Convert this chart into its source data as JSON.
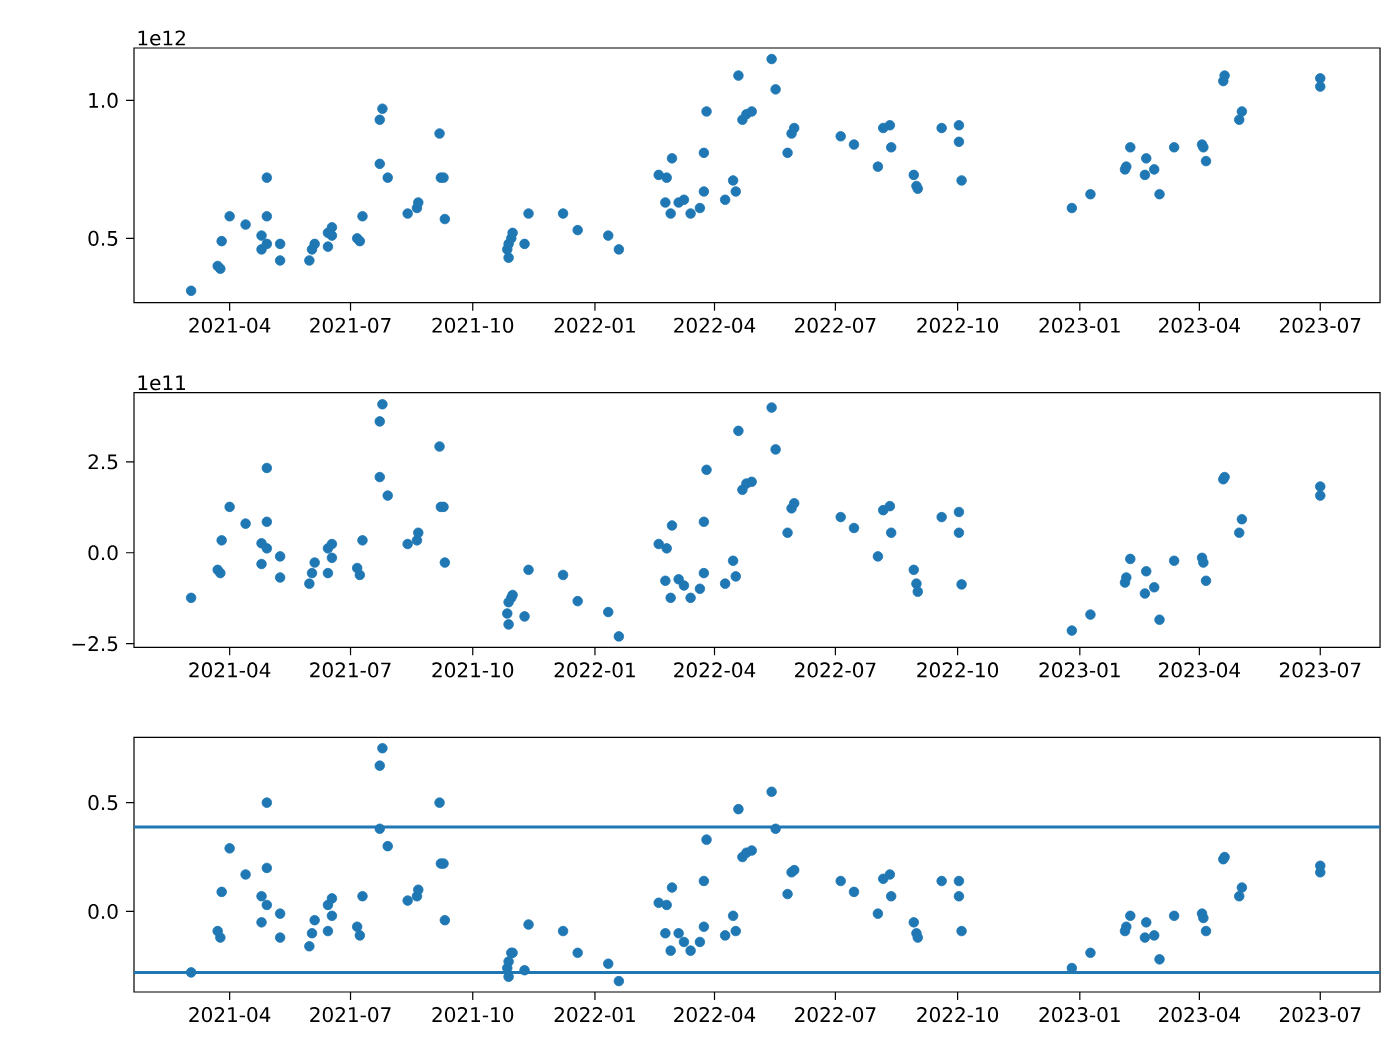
{
  "chart_data": [
    {
      "type": "scatter",
      "marker": "circle",
      "annotations": [
        "1e12"
      ],
      "x": [
        "2021-03-03",
        "2021-03-23",
        "2021-03-25",
        "2021-03-26",
        "2021-04-01",
        "2021-04-13",
        "2021-04-25",
        "2021-04-25",
        "2021-04-29",
        "2021-04-29",
        "2021-04-29",
        "2021-05-09",
        "2021-05-09",
        "2021-05-31",
        "2021-06-02",
        "2021-06-04",
        "2021-06-14",
        "2021-06-14",
        "2021-06-17",
        "2021-06-17",
        "2021-07-06",
        "2021-07-08",
        "2021-07-10",
        "2021-07-23",
        "2021-07-23",
        "2021-07-25",
        "2021-07-29",
        "2021-08-13",
        "2021-08-20",
        "2021-08-21",
        "2021-09-06",
        "2021-09-07",
        "2021-09-09",
        "2021-09-10",
        "2021-10-27",
        "2021-10-28",
        "2021-10-30",
        "2021-10-31",
        "2021-10-28",
        "2021-11-09",
        "2021-11-12",
        "2021-12-08",
        "2021-12-19",
        "2022-01-11",
        "2022-01-19",
        "2022-02-18",
        "2022-02-28",
        "2022-02-24",
        "2022-02-23",
        "2022-02-27",
        "2022-03-05",
        "2022-03-09",
        "2022-03-14",
        "2022-03-21",
        "2022-03-24",
        "2022-03-24",
        "2022-03-26",
        "2022-04-09",
        "2022-04-15",
        "2022-04-17",
        "2022-04-19",
        "2022-04-22",
        "2022-04-25",
        "2022-04-29",
        "2022-05-14",
        "2022-05-17",
        "2022-05-26",
        "2022-05-29",
        "2022-05-31",
        "2022-07-05",
        "2022-07-15",
        "2022-08-02",
        "2022-08-06",
        "2022-08-11",
        "2022-08-12",
        "2022-08-29",
        "2022-08-31",
        "2022-09-01",
        "2022-09-19",
        "2022-10-02",
        "2022-10-02",
        "2022-10-04",
        "2022-12-26",
        "2023-01-09",
        "2023-02-04",
        "2023-02-05",
        "2023-02-08",
        "2023-02-20",
        "2023-02-19",
        "2023-02-26",
        "2023-03-02",
        "2023-03-13",
        "2023-04-03",
        "2023-04-04",
        "2023-04-06",
        "2023-04-19",
        "2023-04-20",
        "2023-05-01",
        "2023-05-03",
        "2023-07-01",
        "2023-07-01"
      ],
      "series": [
        {
          "color": "#1f77b4",
          "values": [
            0.31,
            0.4,
            0.39,
            0.49,
            0.58,
            0.55,
            0.51,
            0.46,
            0.72,
            0.58,
            0.48,
            0.48,
            0.42,
            0.42,
            0.46,
            0.48,
            0.47,
            0.52,
            0.54,
            0.51,
            0.5,
            0.49,
            0.58,
            0.77,
            0.93,
            0.97,
            0.72,
            0.59,
            0.61,
            0.63,
            0.88,
            0.72,
            0.72,
            0.57,
            0.46,
            0.43,
            0.5,
            0.52,
            0.48,
            0.48,
            0.59,
            0.59,
            0.53,
            0.51,
            0.46,
            0.73,
            0.79,
            0.72,
            0.63,
            0.59,
            0.63,
            0.64,
            0.59,
            0.61,
            0.67,
            0.81,
            0.96,
            0.64,
            0.71,
            0.67,
            1.09,
            0.93,
            0.95,
            0.96,
            1.15,
            1.04,
            0.81,
            0.88,
            0.9,
            0.87,
            0.84,
            0.76,
            0.9,
            0.91,
            0.83,
            0.73,
            0.69,
            0.68,
            0.9,
            0.91,
            0.85,
            0.71,
            0.61,
            0.66,
            0.75,
            0.76,
            0.83,
            0.79,
            0.73,
            0.75,
            0.66,
            0.83,
            0.84,
            0.83,
            0.78,
            1.07,
            1.09,
            0.93,
            0.96,
            1.08,
            1.05
          ]
        }
      ],
      "xlim": [
        "2021-01-19",
        "2023-08-15"
      ],
      "xticks": [
        {
          "value": "2021-04-01",
          "label": "2021-04"
        },
        {
          "value": "2021-07-01",
          "label": "2021-07"
        },
        {
          "value": "2021-10-01",
          "label": "2021-10"
        },
        {
          "value": "2022-01-01",
          "label": "2022-01"
        },
        {
          "value": "2022-04-01",
          "label": "2022-04"
        },
        {
          "value": "2022-07-01",
          "label": "2022-07"
        },
        {
          "value": "2022-10-01",
          "label": "2022-10"
        },
        {
          "value": "2023-01-01",
          "label": "2023-01"
        },
        {
          "value": "2023-04-01",
          "label": "2023-04"
        },
        {
          "value": "2023-07-01",
          "label": "2023-07"
        }
      ],
      "ylim": [
        0.267,
        1.19
      ],
      "yticks": [
        {
          "value": 0.5,
          "label": "0.5"
        },
        {
          "value": 1.0,
          "label": "1.0"
        }
      ]
    },
    {
      "type": "scatter",
      "marker": "circle",
      "annotations": [
        "1e11"
      ],
      "x": [
        "2021-03-03",
        "2021-03-23",
        "2021-03-25",
        "2021-03-26",
        "2021-04-01",
        "2021-04-13",
        "2021-04-25",
        "2021-04-25",
        "2021-04-29",
        "2021-04-29",
        "2021-04-29",
        "2021-05-09",
        "2021-05-09",
        "2021-05-31",
        "2021-06-02",
        "2021-06-04",
        "2021-06-14",
        "2021-06-14",
        "2021-06-17",
        "2021-06-17",
        "2021-07-06",
        "2021-07-08",
        "2021-07-10",
        "2021-07-23",
        "2021-07-23",
        "2021-07-25",
        "2021-07-29",
        "2021-08-13",
        "2021-08-20",
        "2021-08-21",
        "2021-09-06",
        "2021-09-07",
        "2021-09-09",
        "2021-09-10",
        "2021-10-27",
        "2021-10-28",
        "2021-10-30",
        "2021-10-31",
        "2021-10-28",
        "2021-11-09",
        "2021-11-12",
        "2021-12-08",
        "2021-12-19",
        "2022-01-11",
        "2022-01-19",
        "2022-02-18",
        "2022-02-28",
        "2022-02-24",
        "2022-02-23",
        "2022-02-27",
        "2022-03-05",
        "2022-03-09",
        "2022-03-14",
        "2022-03-21",
        "2022-03-24",
        "2022-03-24",
        "2022-03-26",
        "2022-04-09",
        "2022-04-15",
        "2022-04-17",
        "2022-04-19",
        "2022-04-22",
        "2022-04-25",
        "2022-04-29",
        "2022-05-14",
        "2022-05-17",
        "2022-05-26",
        "2022-05-29",
        "2022-05-31",
        "2022-07-05",
        "2022-07-15",
        "2022-08-02",
        "2022-08-06",
        "2022-08-11",
        "2022-08-12",
        "2022-08-29",
        "2022-08-31",
        "2022-09-01",
        "2022-09-19",
        "2022-10-02",
        "2022-10-02",
        "2022-10-04",
        "2022-12-26",
        "2023-01-09",
        "2023-02-04",
        "2023-02-05",
        "2023-02-08",
        "2023-02-20",
        "2023-02-19",
        "2023-02-26",
        "2023-03-02",
        "2023-03-13",
        "2023-04-03",
        "2023-04-04",
        "2023-04-06",
        "2023-04-19",
        "2023-04-20",
        "2023-05-01",
        "2023-05-03",
        "2023-07-01",
        "2023-07-01"
      ],
      "series": [
        {
          "color": "#1f77b4",
          "values": [
            -1.24,
            -0.47,
            -0.56,
            0.34,
            1.26,
            0.8,
            0.26,
            -0.31,
            2.33,
            0.85,
            0.12,
            -0.1,
            -0.68,
            -0.85,
            -0.56,
            -0.27,
            -0.56,
            0.12,
            0.24,
            -0.14,
            -0.42,
            -0.61,
            0.34,
            2.08,
            3.61,
            4.08,
            1.57,
            0.24,
            0.34,
            0.55,
            2.92,
            1.26,
            1.26,
            -0.27,
            -1.67,
            -1.97,
            -1.24,
            -1.16,
            -1.36,
            -1.75,
            -0.47,
            -0.61,
            -1.33,
            -1.63,
            -2.3,
            0.24,
            0.75,
            0.12,
            -0.77,
            -1.24,
            -0.73,
            -0.9,
            -1.24,
            -0.99,
            -0.56,
            0.85,
            2.28,
            -0.85,
            -0.22,
            -0.65,
            3.35,
            1.73,
            1.9,
            1.95,
            3.99,
            2.84,
            0.55,
            1.22,
            1.36,
            0.98,
            0.68,
            -0.1,
            1.17,
            1.28,
            0.55,
            -0.47,
            -0.85,
            -1.07,
            0.98,
            1.12,
            0.55,
            -0.87,
            -2.14,
            -1.7,
            -0.82,
            -0.68,
            -0.17,
            -0.51,
            -1.12,
            -0.95,
            -1.84,
            -0.22,
            -0.14,
            -0.27,
            -0.77,
            2.02,
            2.08,
            0.55,
            0.92,
            1.82,
            1.57
          ]
        }
      ],
      "xlim": [
        "2021-01-19",
        "2023-08-15"
      ],
      "xticks": [
        {
          "value": "2021-04-01",
          "label": "2021-04"
        },
        {
          "value": "2021-07-01",
          "label": "2021-07"
        },
        {
          "value": "2021-10-01",
          "label": "2021-10"
        },
        {
          "value": "2022-01-01",
          "label": "2022-01"
        },
        {
          "value": "2022-04-01",
          "label": "2022-04"
        },
        {
          "value": "2022-07-01",
          "label": "2022-07"
        },
        {
          "value": "2022-10-01",
          "label": "2022-10"
        },
        {
          "value": "2023-01-01",
          "label": "2023-01"
        },
        {
          "value": "2023-04-01",
          "label": "2023-04"
        },
        {
          "value": "2023-07-01",
          "label": "2023-07"
        }
      ],
      "ylim": [
        -2.6,
        4.4
      ],
      "yticks": [
        {
          "value": -2.5,
          "label": "−2.5"
        },
        {
          "value": 0,
          "label": "0.0"
        },
        {
          "value": 2.5,
          "label": "2.5"
        }
      ]
    },
    {
      "type": "scatter",
      "marker": "circle",
      "x": [
        "2021-03-03",
        "2021-03-23",
        "2021-03-25",
        "2021-03-26",
        "2021-04-01",
        "2021-04-13",
        "2021-04-25",
        "2021-04-25",
        "2021-04-29",
        "2021-04-29",
        "2021-04-29",
        "2021-05-09",
        "2021-05-09",
        "2021-05-31",
        "2021-06-02",
        "2021-06-04",
        "2021-06-14",
        "2021-06-14",
        "2021-06-17",
        "2021-06-17",
        "2021-07-06",
        "2021-07-08",
        "2021-07-10",
        "2021-07-23",
        "2021-07-23",
        "2021-07-25",
        "2021-07-29",
        "2021-08-13",
        "2021-08-20",
        "2021-08-21",
        "2021-09-06",
        "2021-09-07",
        "2021-09-09",
        "2021-09-10",
        "2021-10-27",
        "2021-10-28",
        "2021-10-30",
        "2021-10-31",
        "2021-10-28",
        "2021-11-09",
        "2021-11-12",
        "2021-12-08",
        "2021-12-19",
        "2022-01-11",
        "2022-01-19",
        "2022-02-18",
        "2022-02-28",
        "2022-02-24",
        "2022-02-23",
        "2022-02-27",
        "2022-03-05",
        "2022-03-09",
        "2022-03-14",
        "2022-03-21",
        "2022-03-24",
        "2022-03-24",
        "2022-03-26",
        "2022-04-09",
        "2022-04-15",
        "2022-04-17",
        "2022-04-19",
        "2022-04-22",
        "2022-04-25",
        "2022-04-29",
        "2022-05-14",
        "2022-05-17",
        "2022-05-26",
        "2022-05-29",
        "2022-05-31",
        "2022-07-05",
        "2022-07-15",
        "2022-08-02",
        "2022-08-06",
        "2022-08-11",
        "2022-08-12",
        "2022-08-29",
        "2022-08-31",
        "2022-09-01",
        "2022-09-19",
        "2022-10-02",
        "2022-10-02",
        "2022-10-04",
        "2022-12-26",
        "2023-01-09",
        "2023-02-04",
        "2023-02-05",
        "2023-02-08",
        "2023-02-20",
        "2023-02-19",
        "2023-02-26",
        "2023-03-02",
        "2023-03-13",
        "2023-04-03",
        "2023-04-04",
        "2023-04-06",
        "2023-04-19",
        "2023-04-20",
        "2023-05-01",
        "2023-05-03",
        "2023-07-01",
        "2023-07-01"
      ],
      "series": [
        {
          "color": "#1f77b4",
          "values": [
            -0.28,
            -0.09,
            -0.12,
            0.09,
            0.29,
            0.17,
            0.07,
            -0.05,
            0.5,
            0.2,
            0.03,
            -0.01,
            -0.12,
            -0.16,
            -0.1,
            -0.04,
            -0.09,
            0.03,
            0.06,
            -0.02,
            -0.07,
            -0.11,
            0.07,
            0.38,
            0.67,
            0.75,
            0.3,
            0.05,
            0.07,
            0.1,
            0.5,
            0.22,
            0.22,
            -0.04,
            -0.26,
            -0.3,
            -0.19,
            -0.19,
            -0.23,
            -0.27,
            -0.06,
            -0.09,
            -0.19,
            -0.24,
            -0.32,
            0.04,
            0.11,
            0.03,
            -0.1,
            -0.18,
            -0.1,
            -0.14,
            -0.18,
            -0.14,
            -0.07,
            0.14,
            0.33,
            -0.11,
            -0.02,
            -0.09,
            0.47,
            0.25,
            0.27,
            0.28,
            0.55,
            0.38,
            0.08,
            0.18,
            0.19,
            0.14,
            0.09,
            -0.01,
            0.15,
            0.17,
            0.07,
            -0.05,
            -0.1,
            -0.12,
            0.14,
            0.14,
            0.07,
            -0.09,
            -0.26,
            -0.19,
            -0.09,
            -0.07,
            -0.02,
            -0.05,
            -0.12,
            -0.11,
            -0.22,
            -0.02,
            -0.01,
            -0.03,
            -0.09,
            0.24,
            0.25,
            0.07,
            0.11,
            0.21,
            0.18
          ]
        }
      ],
      "xlim": [
        "2021-01-19",
        "2023-08-15"
      ],
      "xticks": [
        {
          "value": "2021-04-01",
          "label": "2021-04"
        },
        {
          "value": "2021-07-01",
          "label": "2021-07"
        },
        {
          "value": "2021-10-01",
          "label": "2021-10"
        },
        {
          "value": "2022-01-01",
          "label": "2022-01"
        },
        {
          "value": "2022-04-01",
          "label": "2022-04"
        },
        {
          "value": "2022-07-01",
          "label": "2022-07"
        },
        {
          "value": "2022-10-01",
          "label": "2022-10"
        },
        {
          "value": "2023-01-01",
          "label": "2023-01"
        },
        {
          "value": "2023-04-01",
          "label": "2023-04"
        },
        {
          "value": "2023-07-01",
          "label": "2023-07"
        }
      ],
      "ylim": [
        -0.37,
        0.8
      ],
      "yticks": [
        {
          "value": 0,
          "label": "0.0"
        },
        {
          "value": 0.5,
          "label": "0.5"
        }
      ],
      "ref_lines": [
        {
          "axis": "y",
          "value": 0.388,
          "color": "#1f77b4"
        },
        {
          "axis": "y",
          "value": -0.28,
          "color": "#1f77b4"
        }
      ]
    }
  ]
}
